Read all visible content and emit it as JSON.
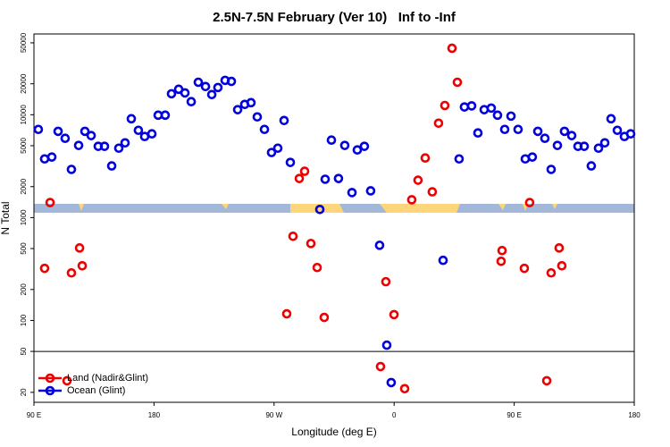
{
  "chart_data": {
    "type": "scatter",
    "title": "2.5N-7.5N February (Ver 10)   Inf to -Inf",
    "x_label": "Longitude (deg E)",
    "y_label": "N Total",
    "xlim": [
      90,
      540
    ],
    "xticks": [
      {
        "value": 90,
        "label": "90 E"
      },
      180,
      {
        "value": 270,
        "label": "90 W"
      },
      {
        "value": 360,
        "label": "0"
      },
      {
        "value": 450,
        "label": "90 E"
      },
      {
        "value": 540,
        "label": "180"
      }
    ],
    "ylim": [
      16,
      61000
    ],
    "y_log": true,
    "yticks": [
      20,
      50,
      100,
      200,
      500,
      1000,
      2000,
      5000,
      10000,
      20000,
      50000
    ],
    "hline": 50,
    "legend": "bottom-left",
    "series": [
      {
        "name": "Land (Nadir&Glint)",
        "color": "#ee0000",
        "x": [
          98.0,
          102.1,
          114.8,
          118.1,
          124.2,
          126.2,
          279.5,
          284.2,
          288.9,
          292.9,
          297.6,
          302.3,
          307.6,
          349.8,
          353.8,
          359.9,
          367.9,
          373.2,
          377.9,
          383.3,
          388.6,
          393.3,
          398.0,
          403.4,
          407.4,
          440.2,
          440.9,
          457.6,
          461.6,
          474.4,
          477.7,
          483.7,
          485.7
        ],
        "values": [
          321,
          1400,
          25.9,
          290,
          507,
          340,
          116,
          658,
          2400,
          2820,
          560,
          327,
          107,
          35.6,
          238,
          114,
          21.7,
          1490,
          2310,
          3800,
          1780,
          8280,
          12300,
          44300,
          20700,
          376,
          478,
          321,
          1400,
          25.9,
          290,
          507,
          340
        ]
      },
      {
        "name": "Ocean (Glint)",
        "color": "#0000dd",
        "x": [
          93.3,
          98.0,
          103.4,
          108.1,
          113.4,
          118.1,
          123.5,
          128.2,
          132.9,
          138.2,
          142.9,
          148.3,
          153.6,
          158.3,
          163.0,
          168.3,
          173.0,
          178.4,
          183.1,
          188.4,
          193.1,
          198.5,
          203.2,
          207.9,
          213.2,
          218.6,
          223.3,
          227.9,
          233.3,
          238.0,
          242.7,
          248.0,
          252.7,
          257.4,
          262.8,
          268.1,
          272.8,
          277.5,
          282.2,
          304.3,
          308.3,
          313.0,
          318.3,
          323.0,
          328.4,
          332.4,
          337.7,
          342.4,
          349.1,
          354.5,
          357.8,
          396.7,
          408.7,
          412.7,
          418.1,
          422.8,
          427.5,
          432.8,
          437.5,
          442.9,
          447.6,
          452.9,
          458.3,
          463.6,
          467.7,
          473.0,
          477.7,
          482.4,
          487.7,
          493.1,
          497.8,
          502.5,
          507.8,
          513.2,
          517.9,
          522.6,
          527.3,
          532.6,
          537.3
        ],
        "values": [
          7200,
          3720,
          3880,
          6900,
          5900,
          2940,
          5030,
          6900,
          6270,
          4930,
          4930,
          3180,
          4730,
          5330,
          9140,
          7060,
          6140,
          6520,
          9900,
          9900,
          16000,
          17700,
          16300,
          13400,
          20700,
          18800,
          15700,
          18400,
          21600,
          21100,
          11200,
          12600,
          13100,
          9530,
          7200,
          4290,
          4730,
          8790,
          3440,
          1200,
          2360,
          5670,
          2400,
          5030,
          1750,
          4550,
          4930,
          1820,
          538,
          57.5,
          24.9,
          384,
          3720,
          11900,
          12200,
          6650,
          11200,
          11600,
          9900,
          7200,
          9700,
          7200,
          3720,
          3880,
          6900,
          5900,
          2940,
          5030,
          6900,
          6270,
          4930,
          4930,
          3180,
          4730,
          5330,
          9140,
          7060,
          6140,
          6520
        ]
      }
    ]
  }
}
